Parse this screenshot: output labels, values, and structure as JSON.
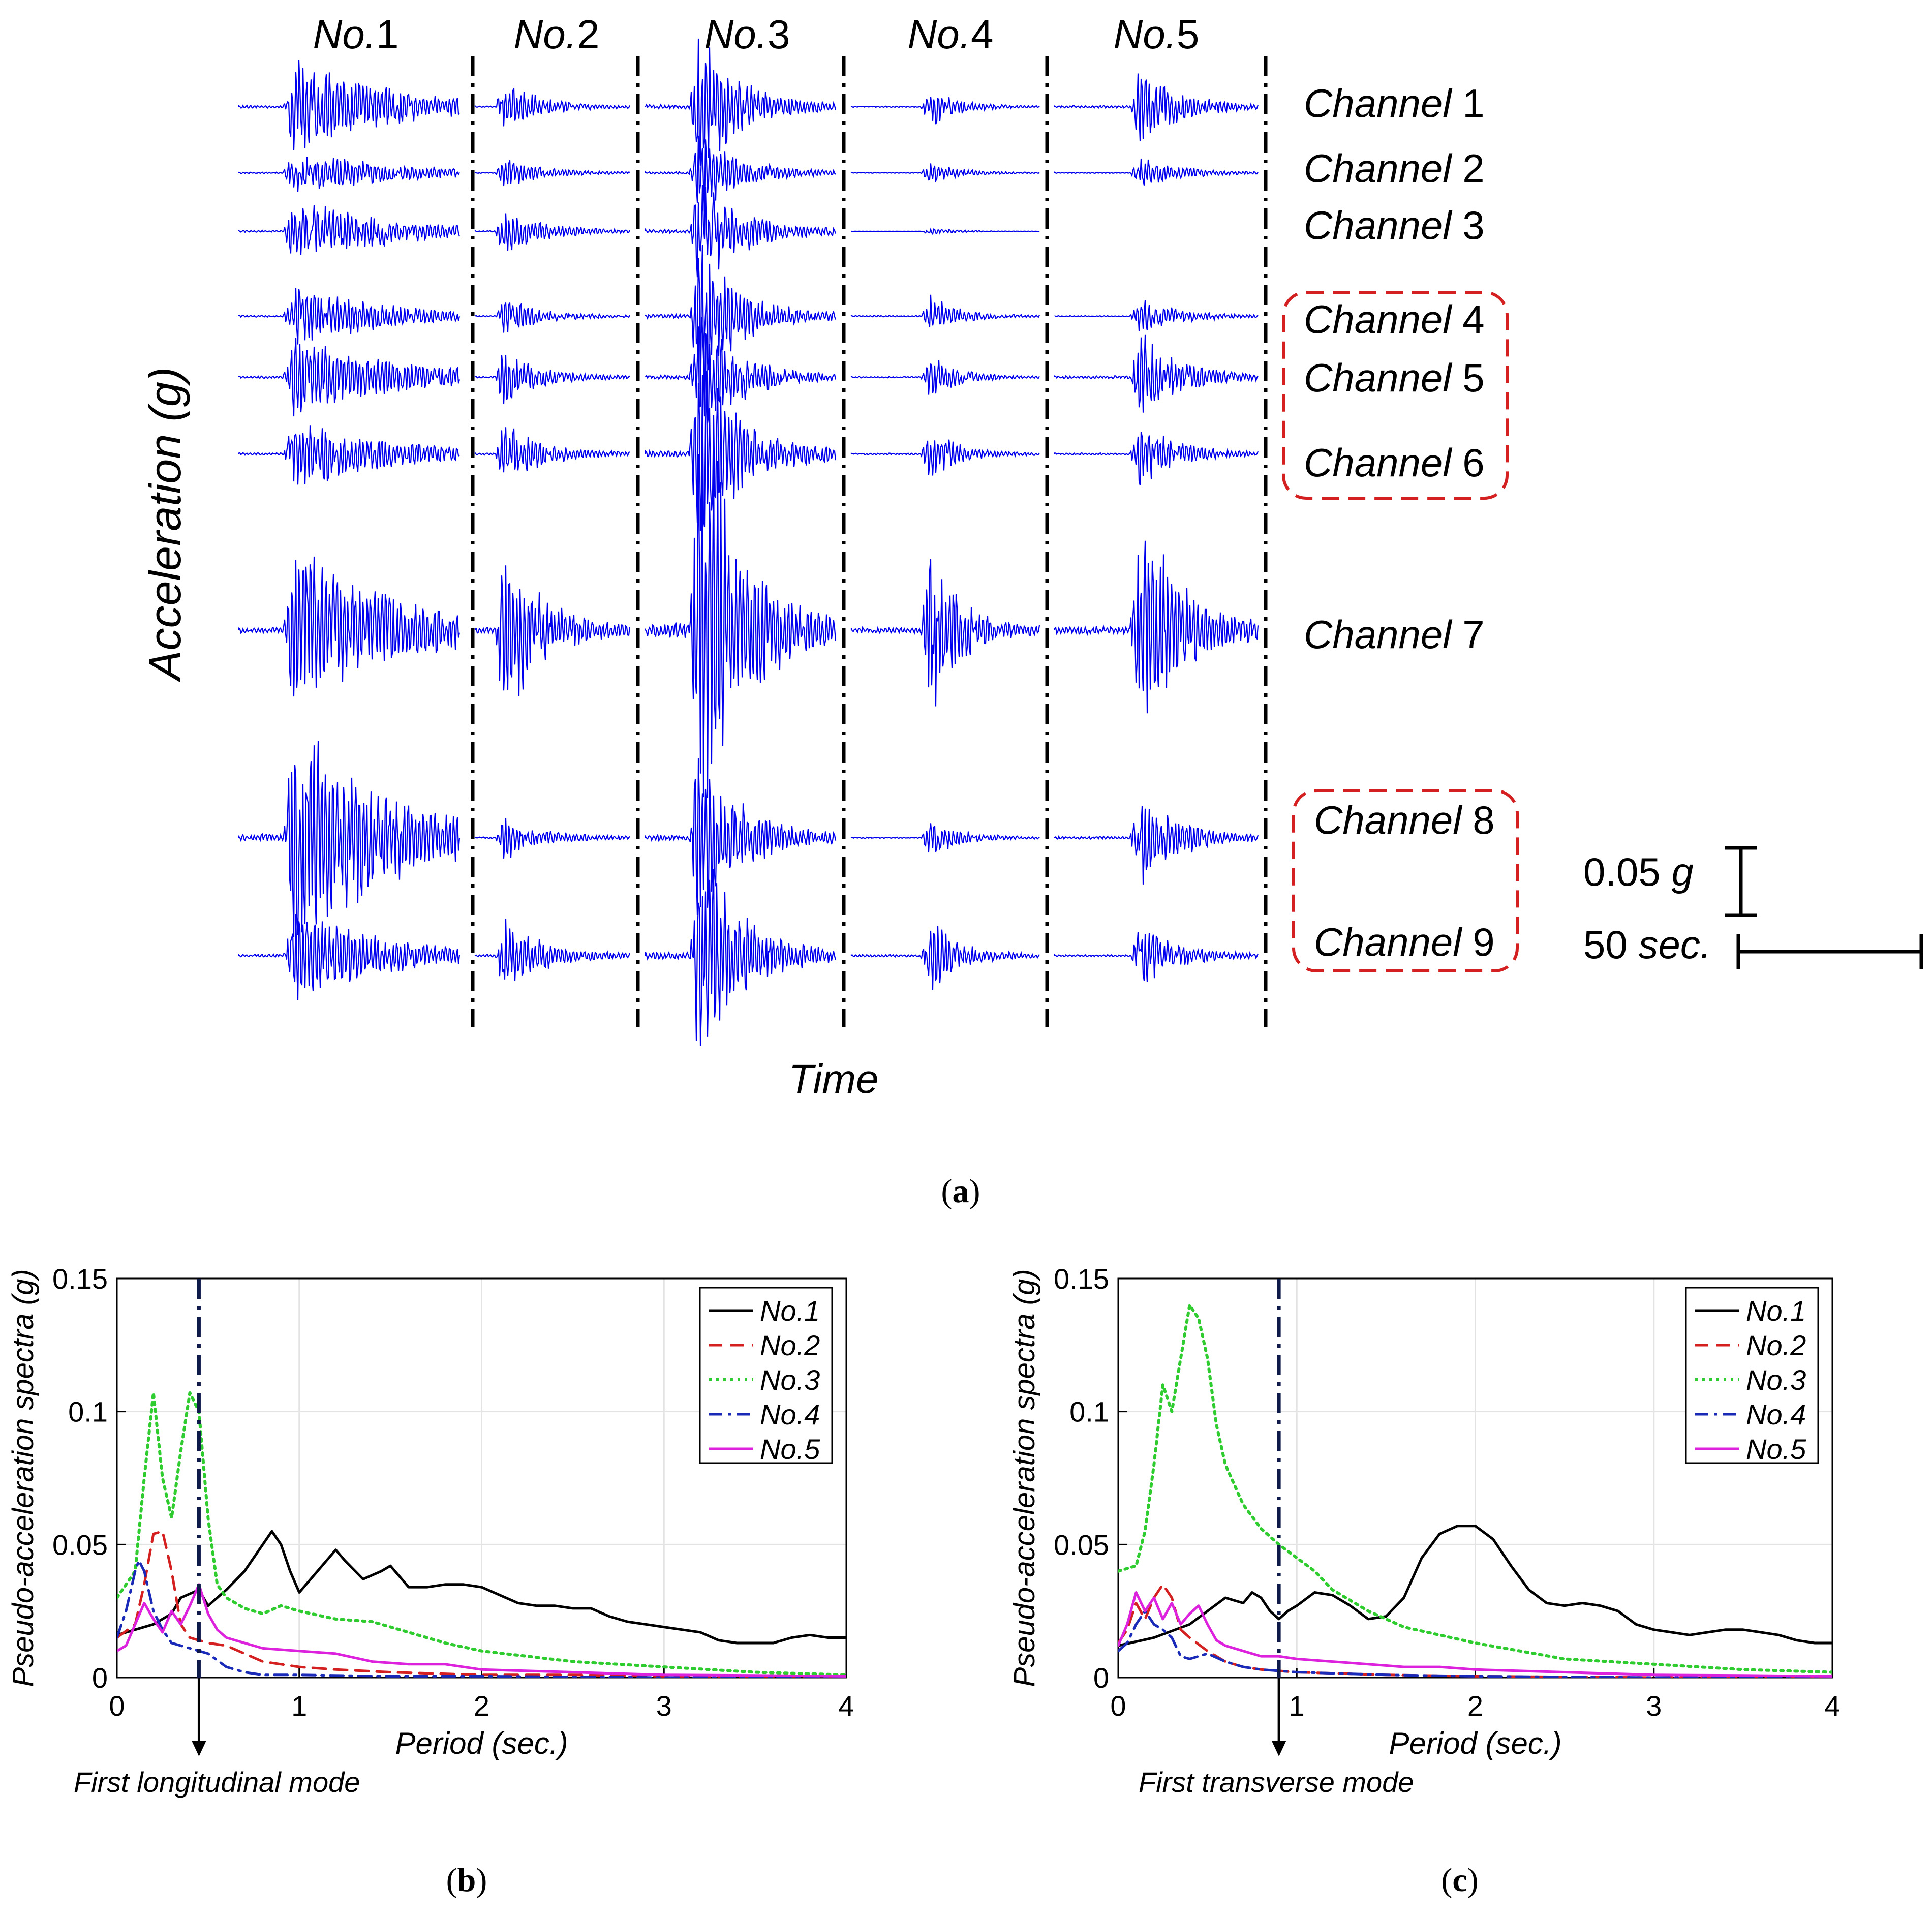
{
  "panel_a": {
    "ylabel": "Acceleration (g)",
    "xlabel": "Time",
    "events": [
      "No.1",
      "No.2",
      "No.3",
      "No.4",
      "No.5"
    ],
    "channels": [
      {
        "italic": "Channel",
        "num": "1",
        "boxed_group": null
      },
      {
        "italic": "Channel",
        "num": "2",
        "boxed_group": null
      },
      {
        "italic": "Channel",
        "num": "3",
        "boxed_group": null
      },
      {
        "italic": "Channel",
        "num": "4",
        "boxed_group": "A"
      },
      {
        "italic": "Channel",
        "num": "5",
        "boxed_group": "A"
      },
      {
        "italic": "Channel",
        "num": "6",
        "boxed_group": "A"
      },
      {
        "italic": "Channel",
        "num": "7",
        "boxed_group": null
      },
      {
        "italic": "Channel",
        "num": "8",
        "boxed_group": "B"
      },
      {
        "italic": "Channel",
        "num": "9",
        "boxed_group": "B"
      }
    ],
    "amplitude_g": [
      [
        0.028,
        0.016,
        0.045,
        0.012,
        0.024
      ],
      [
        0.014,
        0.01,
        0.025,
        0.007,
        0.01
      ],
      [
        0.02,
        0.017,
        0.036,
        0.002,
        0.0
      ],
      [
        0.018,
        0.012,
        0.044,
        0.013,
        0.012
      ],
      [
        0.026,
        0.017,
        0.04,
        0.014,
        0.027
      ],
      [
        0.022,
        0.022,
        0.065,
        0.016,
        0.019
      ],
      [
        0.055,
        0.062,
        0.155,
        0.055,
        0.082
      ],
      [
        0.072,
        0.015,
        0.058,
        0.013,
        0.03
      ],
      [
        0.028,
        0.025,
        0.072,
        0.024,
        0.019
      ]
    ],
    "scale_bar": {
      "amp_label": "0.05",
      "amp_unit": "g",
      "time_label": "50",
      "time_unit": "sec."
    },
    "caption": "(a)",
    "trace_color": "#0000ee",
    "box_color": "#d42020"
  },
  "chart_data": [
    {
      "type": "line",
      "panel": "b",
      "xlabel": "Period (sec.)",
      "ylabel": "Pseudo-acceleration spectra (g)",
      "xlim": [
        0,
        4
      ],
      "ylim": [
        0,
        0.15
      ],
      "xticks": [
        0,
        1,
        2,
        3,
        4
      ],
      "yticks": [
        0,
        0.05,
        0.1,
        0.15
      ],
      "ytick_labels": [
        "0",
        "0.05",
        "0.1",
        "0.15"
      ],
      "grid": true,
      "legend": "top-right",
      "mode_line": {
        "x": 0.45,
        "label": "First longitudinal mode"
      },
      "caption": "(b)",
      "series": [
        {
          "name": "No.1",
          "color": "#000000",
          "dash": "solid",
          "x": [
            0,
            0.1,
            0.2,
            0.3,
            0.35,
            0.45,
            0.5,
            0.6,
            0.7,
            0.8,
            0.85,
            0.9,
            0.95,
            1.0,
            1.1,
            1.2,
            1.25,
            1.35,
            1.45,
            1.5,
            1.6,
            1.7,
            1.8,
            1.9,
            2.0,
            2.1,
            2.2,
            2.3,
            2.4,
            2.5,
            2.6,
            2.7,
            2.8,
            2.9,
            3.0,
            3.1,
            3.2,
            3.3,
            3.4,
            3.5,
            3.6,
            3.7,
            3.8,
            3.9,
            4.0
          ],
          "y": [
            0.016,
            0.018,
            0.02,
            0.024,
            0.03,
            0.033,
            0.027,
            0.033,
            0.04,
            0.05,
            0.055,
            0.05,
            0.04,
            0.032,
            0.04,
            0.048,
            0.044,
            0.037,
            0.04,
            0.042,
            0.034,
            0.034,
            0.035,
            0.035,
            0.034,
            0.031,
            0.028,
            0.027,
            0.027,
            0.026,
            0.026,
            0.023,
            0.021,
            0.02,
            0.019,
            0.018,
            0.017,
            0.014,
            0.013,
            0.013,
            0.013,
            0.015,
            0.016,
            0.015,
            0.015
          ]
        },
        {
          "name": "No.2",
          "color": "#d42020",
          "dash": "dashed",
          "x": [
            0,
            0.1,
            0.15,
            0.2,
            0.25,
            0.3,
            0.35,
            0.4,
            0.5,
            0.6,
            0.7,
            0.8,
            1.0,
            1.2,
            1.5,
            2.0,
            2.5,
            3.0,
            3.5,
            4.0
          ],
          "y": [
            0.015,
            0.02,
            0.035,
            0.054,
            0.055,
            0.04,
            0.02,
            0.015,
            0.013,
            0.012,
            0.009,
            0.006,
            0.004,
            0.003,
            0.002,
            0.001,
            0.001,
            0.0005,
            0.0005,
            0.0005
          ]
        },
        {
          "name": "No.3",
          "color": "#2ecc2e",
          "dash": "dotted",
          "x": [
            0,
            0.1,
            0.15,
            0.2,
            0.25,
            0.3,
            0.35,
            0.4,
            0.45,
            0.5,
            0.55,
            0.6,
            0.7,
            0.8,
            0.9,
            1.0,
            1.2,
            1.4,
            1.6,
            1.8,
            2.0,
            2.5,
            3.0,
            3.5,
            4.0
          ],
          "y": [
            0.03,
            0.04,
            0.075,
            0.107,
            0.075,
            0.06,
            0.085,
            0.107,
            0.1,
            0.06,
            0.035,
            0.03,
            0.026,
            0.024,
            0.027,
            0.025,
            0.022,
            0.021,
            0.017,
            0.013,
            0.01,
            0.006,
            0.004,
            0.002,
            0.001
          ]
        },
        {
          "name": "No.4",
          "color": "#1a2ab8",
          "dash": "dashdot",
          "x": [
            0,
            0.05,
            0.1,
            0.12,
            0.15,
            0.2,
            0.25,
            0.3,
            0.4,
            0.5,
            0.6,
            0.7,
            0.8,
            1.0,
            1.5,
            2.0,
            3.0,
            4.0
          ],
          "y": [
            0.015,
            0.025,
            0.04,
            0.044,
            0.04,
            0.025,
            0.018,
            0.013,
            0.011,
            0.009,
            0.004,
            0.002,
            0.001,
            0.001,
            0.0005,
            0.0005,
            0.0,
            0.0
          ]
        },
        {
          "name": "No.5",
          "color": "#dd22dd",
          "dash": "solid",
          "x": [
            0,
            0.05,
            0.1,
            0.15,
            0.2,
            0.25,
            0.3,
            0.35,
            0.4,
            0.45,
            0.5,
            0.55,
            0.6,
            0.7,
            0.8,
            1.0,
            1.2,
            1.4,
            1.6,
            1.8,
            2.0,
            2.5,
            3.0,
            3.5,
            4.0
          ],
          "y": [
            0.01,
            0.012,
            0.02,
            0.028,
            0.022,
            0.017,
            0.025,
            0.02,
            0.027,
            0.035,
            0.024,
            0.018,
            0.015,
            0.013,
            0.011,
            0.01,
            0.009,
            0.006,
            0.005,
            0.005,
            0.003,
            0.002,
            0.001,
            0.0008,
            0.0005
          ]
        }
      ]
    },
    {
      "type": "line",
      "panel": "c",
      "xlabel": "Period (sec.)",
      "ylabel": "Pseudo-acceleration spectra (g)",
      "xlim": [
        0,
        4
      ],
      "ylim": [
        0,
        0.15
      ],
      "xticks": [
        0,
        1,
        2,
        3,
        4
      ],
      "yticks": [
        0,
        0.05,
        0.1,
        0.15
      ],
      "ytick_labels": [
        "0",
        "0.05",
        "0.1",
        "0.15"
      ],
      "grid": true,
      "legend": "top-right",
      "mode_line": {
        "x": 0.9,
        "label": "First transverse mode"
      },
      "caption": "(c)",
      "series": [
        {
          "name": "No.1",
          "color": "#000000",
          "dash": "solid",
          "x": [
            0,
            0.2,
            0.4,
            0.5,
            0.6,
            0.7,
            0.75,
            0.8,
            0.85,
            0.9,
            0.95,
            1.0,
            1.1,
            1.2,
            1.3,
            1.4,
            1.5,
            1.6,
            1.7,
            1.8,
            1.9,
            2.0,
            2.1,
            2.2,
            2.3,
            2.4,
            2.5,
            2.6,
            2.7,
            2.8,
            2.9,
            3.0,
            3.1,
            3.2,
            3.3,
            3.4,
            3.5,
            3.6,
            3.7,
            3.8,
            3.9,
            4.0
          ],
          "y": [
            0.012,
            0.015,
            0.02,
            0.025,
            0.03,
            0.028,
            0.032,
            0.03,
            0.025,
            0.022,
            0.025,
            0.027,
            0.032,
            0.031,
            0.027,
            0.022,
            0.023,
            0.03,
            0.045,
            0.054,
            0.057,
            0.057,
            0.052,
            0.042,
            0.033,
            0.028,
            0.027,
            0.028,
            0.027,
            0.025,
            0.02,
            0.018,
            0.017,
            0.016,
            0.017,
            0.018,
            0.018,
            0.017,
            0.016,
            0.014,
            0.013,
            0.013
          ]
        },
        {
          "name": "No.2",
          "color": "#d42020",
          "dash": "dashed",
          "x": [
            0,
            0.05,
            0.1,
            0.15,
            0.2,
            0.25,
            0.3,
            0.35,
            0.4,
            0.5,
            0.6,
            0.7,
            0.8,
            1.0,
            1.5,
            2.0,
            3.0,
            4.0
          ],
          "y": [
            0.013,
            0.018,
            0.028,
            0.022,
            0.03,
            0.035,
            0.03,
            0.018,
            0.015,
            0.01,
            0.006,
            0.004,
            0.003,
            0.002,
            0.001,
            0.0005,
            0.0,
            0.0
          ]
        },
        {
          "name": "No.3",
          "color": "#2ecc2e",
          "dash": "dotted",
          "x": [
            0,
            0.1,
            0.15,
            0.2,
            0.25,
            0.3,
            0.35,
            0.4,
            0.45,
            0.5,
            0.55,
            0.6,
            0.7,
            0.8,
            0.9,
            1.0,
            1.1,
            1.2,
            1.4,
            1.6,
            1.8,
            2.0,
            2.5,
            3.0,
            3.5,
            4.0
          ],
          "y": [
            0.04,
            0.042,
            0.055,
            0.08,
            0.11,
            0.1,
            0.12,
            0.14,
            0.135,
            0.12,
            0.095,
            0.08,
            0.065,
            0.056,
            0.05,
            0.045,
            0.04,
            0.033,
            0.025,
            0.019,
            0.016,
            0.013,
            0.007,
            0.005,
            0.003,
            0.002
          ]
        },
        {
          "name": "No.4",
          "color": "#1a2ab8",
          "dash": "dashdot",
          "x": [
            0,
            0.05,
            0.1,
            0.15,
            0.2,
            0.25,
            0.3,
            0.35,
            0.4,
            0.5,
            0.6,
            0.7,
            0.8,
            1.0,
            1.5,
            2.0,
            3.0,
            4.0
          ],
          "y": [
            0.01,
            0.013,
            0.02,
            0.025,
            0.02,
            0.018,
            0.015,
            0.008,
            0.007,
            0.009,
            0.006,
            0.004,
            0.003,
            0.002,
            0.001,
            0.0005,
            0.0,
            0.0
          ]
        },
        {
          "name": "No.5",
          "color": "#dd22dd",
          "dash": "solid",
          "x": [
            0,
            0.05,
            0.1,
            0.15,
            0.2,
            0.25,
            0.3,
            0.35,
            0.4,
            0.45,
            0.5,
            0.55,
            0.6,
            0.7,
            0.8,
            0.9,
            1.0,
            1.2,
            1.4,
            1.6,
            1.8,
            2.0,
            2.5,
            3.0,
            3.5,
            4.0
          ],
          "y": [
            0.012,
            0.02,
            0.032,
            0.025,
            0.03,
            0.022,
            0.028,
            0.02,
            0.024,
            0.027,
            0.02,
            0.014,
            0.012,
            0.01,
            0.008,
            0.008,
            0.007,
            0.006,
            0.005,
            0.004,
            0.004,
            0.003,
            0.002,
            0.001,
            0.0008,
            0.0005
          ]
        }
      ]
    }
  ]
}
